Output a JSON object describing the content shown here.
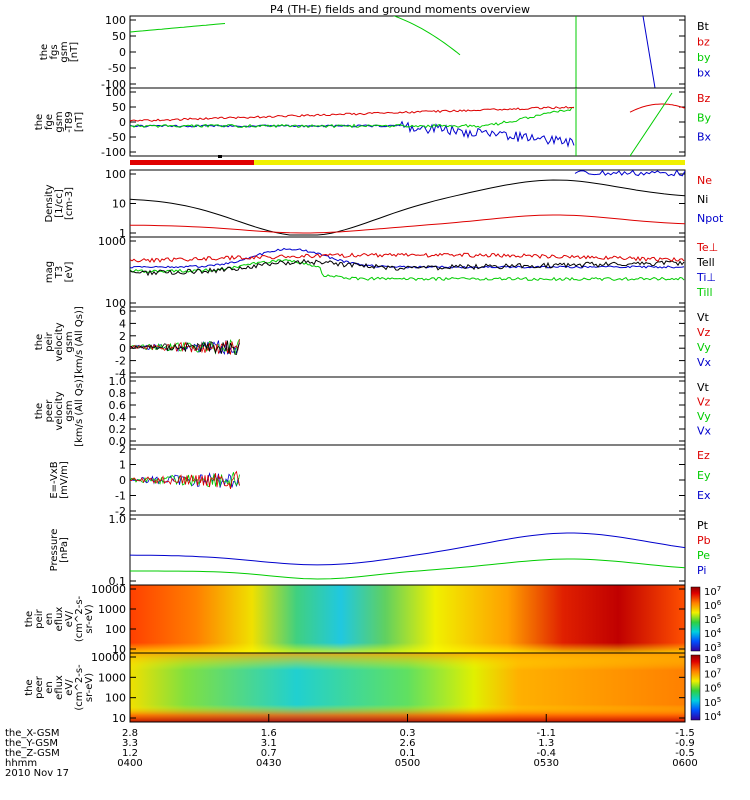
{
  "title": "P4 (TH-E) fields and ground moments overview",
  "chart_data": [
    {
      "type": "line",
      "ylabel": [
        "the",
        "fgs",
        "gsm",
        "[nT]"
      ],
      "ylim": [
        -100,
        100
      ],
      "yticks": [
        "100",
        "50",
        "0",
        "-50",
        "-100"
      ],
      "legend": [
        {
          "name": "Bt",
          "color": "#000000"
        },
        {
          "name": "bz",
          "color": "#dd0000"
        },
        {
          "name": "by",
          "color": "#00cc00"
        },
        {
          "name": "bx",
          "color": "#0000cc"
        }
      ]
    },
    {
      "type": "line",
      "ylabel": [
        "the",
        "fge",
        "gsm",
        "-T89",
        "[nT]"
      ],
      "ylim": [
        -120,
        120
      ],
      "yticks": [
        "100",
        "50",
        "0",
        "-50",
        "-100"
      ],
      "legend": [
        {
          "name": "Bz",
          "color": "#dd0000"
        },
        {
          "name": "By",
          "color": "#00cc00"
        },
        {
          "name": "Bx",
          "color": "#0000cc"
        }
      ]
    },
    {
      "type": "line",
      "scale": "log",
      "ylabel": [
        "Density",
        "[1/cc]",
        "[cm-3]"
      ],
      "yticks": [
        "100",
        "10",
        "1"
      ],
      "legend": [
        {
          "name": "Ne",
          "color": "#dd0000"
        },
        {
          "name": "Ni",
          "color": "#000000"
        },
        {
          "name": "Npot",
          "color": "#0000cc"
        }
      ]
    },
    {
      "type": "line",
      "scale": "log",
      "ylabel": [
        "mag",
        "T3",
        "[eV]"
      ],
      "yticks": [
        "1000",
        "100"
      ],
      "legend": [
        {
          "name": "Te⊥",
          "color": "#dd0000"
        },
        {
          "name": "Tell",
          "color": "#000000"
        },
        {
          "name": "Ti⊥",
          "color": "#0000cc"
        },
        {
          "name": "Till",
          "color": "#00cc00"
        }
      ]
    },
    {
      "type": "line",
      "ylim": [
        -4,
        6
      ],
      "ylabel": [
        "the",
        "peir",
        "velocity",
        "gsm",
        "[km/s (All Qs)]"
      ],
      "yticks": [
        "6",
        "4",
        "2",
        "0",
        "-2",
        "-4"
      ],
      "legend": [
        {
          "name": "Vt",
          "color": "#000000"
        },
        {
          "name": "Vz",
          "color": "#dd0000"
        },
        {
          "name": "Vy",
          "color": "#00cc00"
        },
        {
          "name": "Vx",
          "color": "#0000cc"
        }
      ]
    },
    {
      "type": "line",
      "ylim": [
        0,
        1
      ],
      "ylabel": [
        "the",
        "peer",
        "velocity",
        "gsm",
        "[km/s (All Qs)]"
      ],
      "yticks": [
        "1.0",
        "0.8",
        "0.6",
        "0.4",
        "0.2",
        "0.0"
      ],
      "legend": [
        {
          "name": "Vt",
          "color": "#000000"
        },
        {
          "name": "Vz",
          "color": "#dd0000"
        },
        {
          "name": "Vy",
          "color": "#00cc00"
        },
        {
          "name": "Vx",
          "color": "#0000cc"
        }
      ]
    },
    {
      "type": "line",
      "ylim": [
        -2,
        2
      ],
      "ylabel": [
        "E=-VxB",
        "[mV/m]"
      ],
      "yticks": [
        "2",
        "1",
        "0",
        "-1",
        "-2"
      ],
      "legend": [
        {
          "name": "Ez",
          "color": "#dd0000"
        },
        {
          "name": "Ey",
          "color": "#00cc00"
        },
        {
          "name": "Ex",
          "color": "#0000cc"
        }
      ]
    },
    {
      "type": "line",
      "scale": "log",
      "ylabel": [
        "Pressure",
        "[nPa]"
      ],
      "yticks": [
        "1.0",
        "0.1"
      ],
      "legend": [
        {
          "name": "Pt",
          "color": "#000000"
        },
        {
          "name": "Pb",
          "color": "#dd0000"
        },
        {
          "name": "Pe",
          "color": "#00cc00"
        },
        {
          "name": "Pi",
          "color": "#0000cc"
        }
      ]
    },
    {
      "type": "heatmap",
      "ylabel": [
        "the",
        "peir",
        "en",
        "eflux",
        "eV/",
        "(cm^2-s-",
        "sr-eV)"
      ],
      "yticks": [
        "10000",
        "1000",
        "100",
        "10"
      ],
      "colorbar_exponents": [
        "7",
        "6",
        "5",
        "4",
        "3"
      ]
    },
    {
      "type": "heatmap",
      "ylabel": [
        "the",
        "peer",
        "en",
        "eflux",
        "eV/",
        "(cm^2-s-",
        "sr-eV)"
      ],
      "yticks": [
        "10000",
        "1000",
        "100",
        "10"
      ],
      "colorbar_exponents": [
        "8",
        "7",
        "6",
        "5",
        "4"
      ]
    }
  ],
  "xaxis": {
    "rows": [
      {
        "label": "the_X-GSM",
        "values": [
          "2.8",
          "1.6",
          "0.3",
          "-1.1",
          "-1.5"
        ]
      },
      {
        "label": "the_Y-GSM",
        "values": [
          "3.3",
          "3.1",
          "2.6",
          "1.3",
          "-0.9"
        ]
      },
      {
        "label": "the_Z-GSM",
        "values": [
          "1.2",
          "0.7",
          "0.1",
          "-0.4",
          "-0.5"
        ]
      },
      {
        "label": "hhmm",
        "values": [
          "0400",
          "0430",
          "0500",
          "0530",
          "0600"
        ]
      }
    ],
    "date": "2010 Nov 17"
  }
}
